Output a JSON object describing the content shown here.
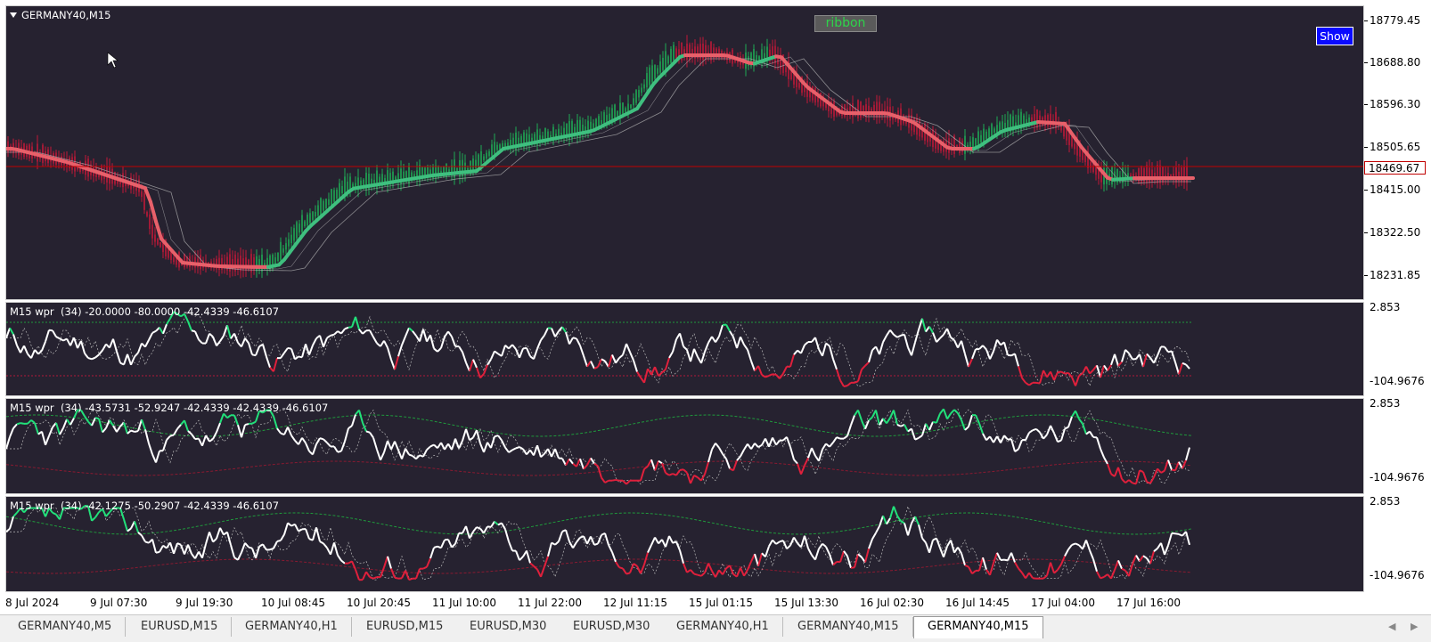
{
  "main": {
    "title": "GERMANY40,M15",
    "ribbon_label": "ribbon",
    "show_button": "Show",
    "current_price": "18469.67",
    "price_ticks": [
      "18779.45",
      "18688.80",
      "18596.30",
      "18505.65",
      "18415.00",
      "18322.50",
      "18231.85"
    ],
    "colors": {
      "background": "#262230",
      "ribbon_up": "#3fbf7f",
      "ribbon_down": "#e8606a",
      "price_line": "#c00000",
      "candle_up": "#1faa55",
      "candle_down": "#c01838"
    }
  },
  "subpanes": [
    {
      "title": "M15 wpr  (34) -20.0000 -80.0000 -42.4339 -46.6107",
      "top_label": "2.853",
      "bottom_label": "-104.9676"
    },
    {
      "title": "M15 wpr  (34) -43.5731 -52.9247 -42.4339 -42.4339 -46.6107",
      "top_label": "2.853",
      "bottom_label": "-104.9676"
    },
    {
      "title": "M15 wpr  (34) -42.1275 -50.2907 -42.4339 -46.6107",
      "top_label": "2.853",
      "bottom_label": "-104.9676"
    }
  ],
  "time_axis": [
    "8 Jul 2024",
    "9 Jul 07:30",
    "9 Jul 19:30",
    "10 Jul 08:45",
    "10 Jul 20:45",
    "11 Jul 10:00",
    "11 Jul 22:00",
    "12 Jul 11:15",
    "15 Jul 01:15",
    "15 Jul 13:30",
    "16 Jul 02:30",
    "16 Jul 14:45",
    "17 Jul 04:00",
    "17 Jul 16:00"
  ],
  "tabs": [
    {
      "label": "GERMANY40,M5",
      "active": false
    },
    {
      "label": "EURUSD,M15",
      "active": false
    },
    {
      "label": "GERMANY40,H1",
      "active": false
    },
    {
      "label": "EURUSD,M15",
      "active": false
    },
    {
      "label": "EURUSD,M30",
      "active": false
    },
    {
      "label": "EURUSD,M30",
      "active": false
    },
    {
      "label": "GERMANY40,H1",
      "active": false
    },
    {
      "label": "GERMANY40,M15",
      "active": false
    },
    {
      "label": "GERMANY40,M15",
      "active": true
    }
  ],
  "icons": {
    "collapse": "triangle-down-icon",
    "scroll_left": "scroll-left-icon",
    "scroll_right": "scroll-right-icon"
  }
}
